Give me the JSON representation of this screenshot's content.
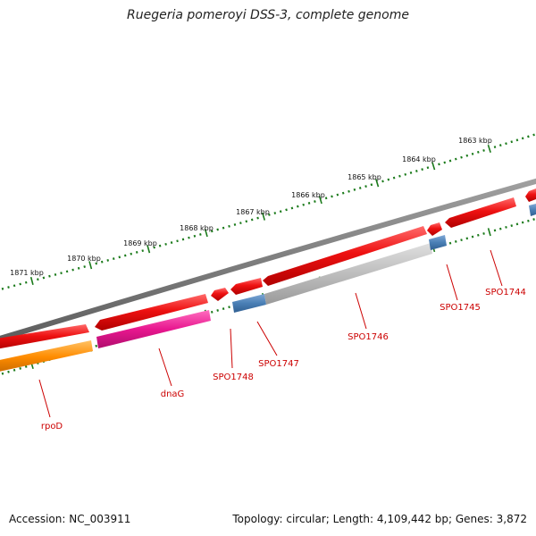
{
  "title": "Ruegeria pomeroyi DSS-3, complete genome",
  "footer": {
    "accession": "Accession: NC_003911",
    "summary": "Topology: circular; Length: 4,109,442 bp; Genes: 3,872"
  },
  "ruler": {
    "labels": [
      "1863 kbp",
      "1864 kbp",
      "1865 kbp",
      "1866 kbp",
      "1867 kbp",
      "1868 kbp",
      "1869 kbp",
      "1870 kbp",
      "1871 kbp"
    ],
    "tick_color": "#1a7a1a"
  },
  "genes": [
    {
      "label": "SPO1744",
      "color": "#ee1111"
    },
    {
      "label": "SPO1745",
      "color": "#ee1111"
    },
    {
      "label": "SPO1746",
      "color": "#ee1111"
    },
    {
      "label": "SPO1747",
      "color": "#ee1111"
    },
    {
      "label": "SPO1748",
      "color": "#ee1111"
    },
    {
      "label": "dnaG",
      "color": "#ee1111"
    },
    {
      "label": "rpoD",
      "color": "#ee1111"
    }
  ],
  "colors": {
    "backbone": "#777777",
    "gene": "#ee1111",
    "cds_gray": "#bbbbbb",
    "cds_blue": "#4a7fb5",
    "cds_pink": "#e8178f",
    "cds_orange": "#ff8c00",
    "label": "#cc0000"
  }
}
